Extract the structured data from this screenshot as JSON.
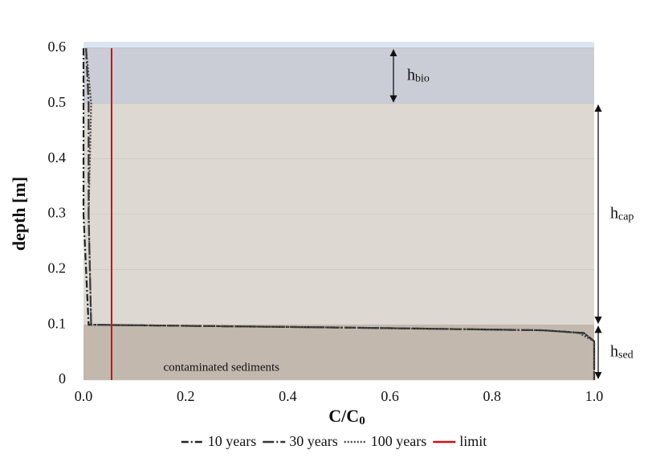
{
  "chart_data": {
    "type": "line",
    "xlabel": "C/C",
    "xlabel_sub": "0",
    "ylabel": "depth [m]",
    "xlim": [
      0,
      1
    ],
    "ylim": [
      0,
      0.6
    ],
    "xticks": [
      {
        "value": 0,
        "label": "0.0"
      },
      0.2,
      0.4,
      0.6,
      0.8,
      {
        "value": 1,
        "label": "1.0"
      }
    ],
    "yticks": [
      0,
      0.1,
      0.2,
      0.3,
      0.4,
      0.5,
      0.6
    ],
    "grid": true,
    "layers": [
      {
        "from": 0.5,
        "to": 0.6,
        "color": "#cbcdd6",
        "label": "h",
        "sub": "bio"
      },
      {
        "from": 0.1,
        "to": 0.5,
        "color": "#ddd8d2",
        "label": "h",
        "sub": "cap"
      },
      {
        "from": 0,
        "to": 0.1,
        "color": "#c2b8ae",
        "label": "h",
        "sub": "sed"
      }
    ],
    "annotation": {
      "text": "contaminated sediments",
      "x": 0.27,
      "y": 0.022
    },
    "series": [
      {
        "name": "10 years",
        "color": "#222222",
        "dash": "dashdot",
        "x": [
          0.0,
          0.0,
          0.0,
          0.01,
          0.5,
          0.9,
          0.98,
          1.0,
          1.0
        ],
        "y": [
          0.6,
          0.5,
          0.3,
          0.1,
          0.095,
          0.09,
          0.085,
          0.07,
          0
        ]
      },
      {
        "name": "30 years",
        "color": "#333333",
        "dash": "longdashdot",
        "x": [
          0.005,
          0.01,
          0.01,
          0.015,
          0.5,
          0.9,
          0.98,
          1.0,
          1.0
        ],
        "y": [
          0.6,
          0.5,
          0.3,
          0.1,
          0.095,
          0.09,
          0.085,
          0.07,
          0
        ]
      },
      {
        "name": "100 years",
        "color": "#444444",
        "dash": "dotted",
        "x": [
          0.005,
          0.015,
          0.01,
          0.015,
          0.5,
          0.9,
          0.97,
          1.0,
          1.0
        ],
        "y": [
          0.6,
          0.5,
          0.3,
          0.1,
          0.095,
          0.09,
          0.085,
          0.07,
          0
        ]
      },
      {
        "name": "limit",
        "color": "#cc1111",
        "dash": "solid",
        "x": [
          0.055,
          0.055
        ],
        "y": [
          0,
          0.6
        ]
      }
    ]
  }
}
